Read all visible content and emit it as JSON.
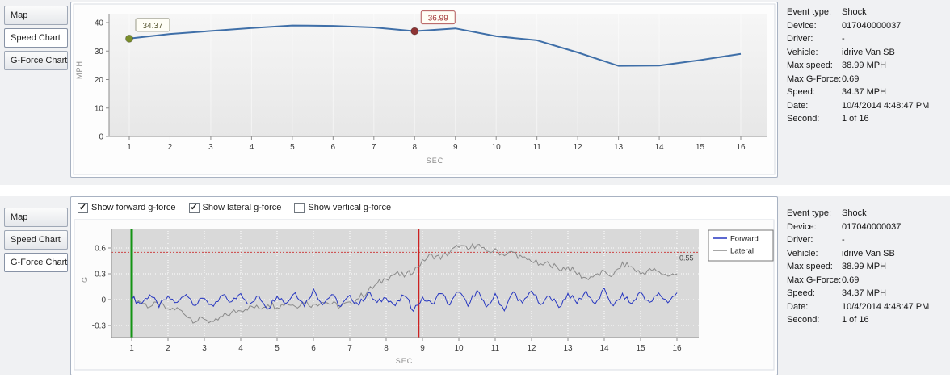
{
  "tabs": {
    "items": [
      {
        "label": "Map"
      },
      {
        "label": "Speed Chart"
      },
      {
        "label": "G-Force Chart"
      }
    ]
  },
  "info": {
    "rows": [
      {
        "label": "Event type:",
        "value": "Shock"
      },
      {
        "label": "Device:",
        "value": "017040000037"
      },
      {
        "label": "Driver:",
        "value": "-"
      },
      {
        "label": "Vehicle:",
        "value": "idrive Van SB"
      },
      {
        "label": "Max speed:",
        "value": "38.99 MPH"
      },
      {
        "label": "Max G-Force:",
        "value": "0.69"
      },
      {
        "label": "Speed:",
        "value": "34.37 MPH"
      },
      {
        "label": "Date:",
        "value": "10/4/2014 4:48:47 PM"
      },
      {
        "label": "Second:",
        "value": "1 of 16"
      }
    ]
  },
  "gforce_controls": {
    "checkboxes": [
      {
        "label": "Show forward g-force",
        "checked": true
      },
      {
        "label": "Show lateral g-force",
        "checked": true
      },
      {
        "label": "Show vertical g-force",
        "checked": false
      }
    ]
  },
  "chart_data": [
    {
      "type": "line",
      "name": "speed-chart",
      "xlabel": "SEC",
      "ylabel": "MPH",
      "x": [
        1,
        2,
        3,
        4,
        5,
        6,
        7,
        8,
        9,
        10,
        11,
        12,
        13,
        14,
        15,
        16
      ],
      "values": [
        34.37,
        36.0,
        37.05,
        38.1,
        38.99,
        38.85,
        38.3,
        36.99,
        37.95,
        35.2,
        33.8,
        29.5,
        24.8,
        24.9,
        26.8,
        29.0
      ],
      "ylim": [
        0,
        40
      ],
      "yticks": [
        0,
        10,
        20,
        30,
        40
      ],
      "line_color": "#3f6fa8",
      "markers": [
        {
          "x": 1,
          "value": 34.37,
          "label": "34.37",
          "dot_color": "#7b8f2b",
          "box_border": "#9a9a88",
          "text_color": "#55542e"
        },
        {
          "x": 8,
          "value": 36.99,
          "label": "36.99",
          "dot_color": "#8e3434",
          "box_border": "#b25858",
          "text_color": "#a03434"
        }
      ]
    },
    {
      "type": "line",
      "name": "gforce-chart",
      "xlabel": "SEC",
      "ylabel": "G",
      "ylim": [
        -0.45,
        0.82
      ],
      "yticks": [
        -0.3,
        0,
        0.3,
        0.6
      ],
      "xticks": [
        1,
        2,
        3,
        4,
        5,
        6,
        7,
        8,
        9,
        10,
        11,
        12,
        13,
        14,
        15,
        16
      ],
      "x_start": 1,
      "x_step": 0.25,
      "threshold": {
        "value": 0.55,
        "label": "0.55",
        "color": "#cc4444"
      },
      "vlines": [
        {
          "x": 1,
          "color": "#149414",
          "width": 3
        },
        {
          "x": 8.9,
          "color": "#cc2222",
          "width": 1.5
        }
      ],
      "legend_position": "right",
      "series": [
        {
          "name": "Forward",
          "color": "#2636c0",
          "noise": 0.035,
          "values": [
            0.02,
            -0.05,
            0.06,
            -0.08,
            0.03,
            -0.04,
            0.07,
            -0.06,
            0.02,
            -0.09,
            0.05,
            -0.03,
            0.08,
            -0.06,
            0.04,
            -0.1,
            0.05,
            -0.04,
            0.09,
            -0.07,
            0.12,
            -0.05,
            0.06,
            -0.08,
            0.04,
            -0.06,
            0.08,
            -0.04,
            0.03,
            -0.07,
            0.05,
            -0.12,
            0.02,
            -0.05,
            0.08,
            -0.06,
            0.1,
            -0.08,
            0.12,
            -0.1,
            0.06,
            -0.12,
            0.09,
            -0.05,
            0.11,
            -0.07,
            0.05,
            -0.09,
            0.07,
            -0.04,
            0.1,
            -0.06,
            0.12,
            -0.08,
            0.06,
            -0.05,
            0.09,
            -0.04,
            0.07,
            -0.03,
            0.08
          ]
        },
        {
          "name": "Lateral",
          "color": "#8a8a8a",
          "noise": 0.04,
          "values": [
            0.02,
            -0.03,
            -0.08,
            -0.05,
            -0.12,
            -0.1,
            -0.18,
            -0.25,
            -0.22,
            -0.27,
            -0.2,
            -0.15,
            -0.12,
            -0.08,
            -0.1,
            -0.05,
            -0.08,
            -0.04,
            -0.07,
            -0.03,
            -0.06,
            -0.02,
            -0.05,
            -0.08,
            -0.04,
            0.02,
            0.1,
            0.18,
            0.25,
            0.3,
            0.27,
            0.33,
            0.45,
            0.52,
            0.48,
            0.55,
            0.62,
            0.58,
            0.65,
            0.55,
            0.58,
            0.52,
            0.55,
            0.48,
            0.45,
            0.4,
            0.42,
            0.35,
            0.38,
            0.3,
            0.25,
            0.28,
            0.32,
            0.28,
            0.42,
            0.38,
            0.3,
            0.35,
            0.32,
            0.28,
            0.3
          ]
        }
      ]
    }
  ]
}
